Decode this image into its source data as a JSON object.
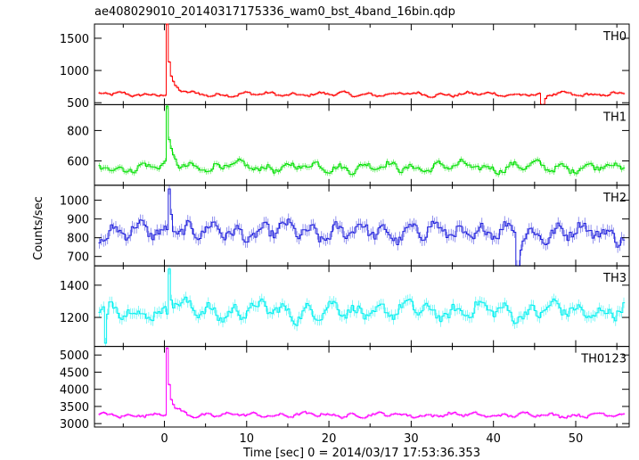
{
  "chart_data": {
    "type": "line",
    "title": "ae408029010_20140317175336_wam0_bst_4band_16bin.qdp",
    "xlabel": "Time [sec] 0 = 2014/03/17 17:53:36.353",
    "ylabel": "Counts/sec",
    "xlim": [
      -8.5,
      56.5
    ],
    "x_ticks": [
      "0",
      "10",
      "20",
      "30",
      "40",
      "50"
    ],
    "x_tick_values": [
      0,
      10,
      20,
      30,
      40,
      50
    ],
    "panels": [
      {
        "name": "TH0",
        "color": "#ff0000",
        "ylim": [
          470,
          1720
        ],
        "y_ticks": [
          "500",
          "1000",
          "1500"
        ],
        "y_tick_values": [
          500,
          1000,
          1500
        ],
        "baseline": 630,
        "noise": 35,
        "burst_time": 0.4,
        "burst_peak": 1720,
        "dips": [
          [
            46.0,
            470
          ]
        ]
      },
      {
        "name": "TH1",
        "color": "#00e000",
        "ylim": [
          440,
          970
        ],
        "y_ticks": [
          "600",
          "800"
        ],
        "y_tick_values": [
          600,
          800
        ],
        "baseline": 560,
        "noise": 35,
        "burst_time": 0.4,
        "burst_peak": 960,
        "dips": []
      },
      {
        "name": "TH2",
        "color": "#2222dd",
        "ylim": [
          650,
          1080
        ],
        "y_ticks": [
          "700",
          "800",
          "900",
          "1000"
        ],
        "y_tick_values": [
          700,
          800,
          900,
          1000
        ],
        "baseline": 830,
        "noise": 55,
        "burst_time": 0.5,
        "burst_peak": 1060,
        "dips": [
          [
            43.0,
            650
          ]
        ]
      },
      {
        "name": "TH3",
        "color": "#00f0f0",
        "ylim": [
          1020,
          1520
        ],
        "y_ticks": [
          "1200",
          "1400"
        ],
        "y_tick_values": [
          1200,
          1400
        ],
        "baseline": 1240,
        "noise": 60,
        "burst_time": 0.6,
        "burst_peak": 1500,
        "dips": [
          [
            -7.2,
            1040
          ]
        ]
      },
      {
        "name": "TH0123",
        "color": "#ff00ff",
        "ylim": [
          2900,
          5250
        ],
        "y_ticks": [
          "3000",
          "3500",
          "4000",
          "4500",
          "5000"
        ],
        "y_tick_values": [
          3000,
          3500,
          4000,
          4500,
          5000
        ],
        "baseline": 3250,
        "noise": 70,
        "burst_time": 0.4,
        "burst_peak": 5200,
        "dips": []
      }
    ]
  }
}
